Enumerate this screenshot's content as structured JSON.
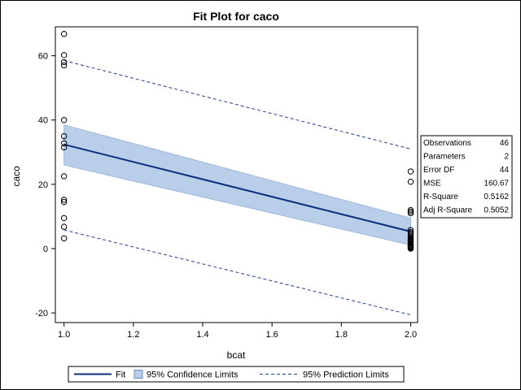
{
  "chart_data": {
    "type": "scatter",
    "title": "Fit Plot for caco",
    "xlabel": "bcat",
    "ylabel": "caco",
    "xlim": [
      0.975,
      2.02
    ],
    "ylim": [
      -23,
      69
    ],
    "x_ticks": [
      "1.0",
      "1.2",
      "1.4",
      "1.6",
      "1.8",
      "2.0"
    ],
    "y_ticks": [
      "-20",
      "0",
      "20",
      "40",
      "60"
    ],
    "points": [
      {
        "x": 1,
        "y": 66.8
      },
      {
        "x": 1,
        "y": 60.2
      },
      {
        "x": 1,
        "y": 58.0
      },
      {
        "x": 1,
        "y": 57.0
      },
      {
        "x": 1,
        "y": 40.0
      },
      {
        "x": 1,
        "y": 35.0
      },
      {
        "x": 1,
        "y": 32.8
      },
      {
        "x": 1,
        "y": 31.5
      },
      {
        "x": 1,
        "y": 22.5
      },
      {
        "x": 1,
        "y": 15.2
      },
      {
        "x": 1,
        "y": 14.5
      },
      {
        "x": 1,
        "y": 9.5
      },
      {
        "x": 1,
        "y": 6.8
      },
      {
        "x": 1,
        "y": 3.2
      },
      {
        "x": 2,
        "y": 24.0
      },
      {
        "x": 2,
        "y": 20.8
      },
      {
        "x": 2,
        "y": 12.0
      },
      {
        "x": 2,
        "y": 11.5
      },
      {
        "x": 2,
        "y": 11.0
      },
      {
        "x": 2,
        "y": 5.8
      },
      {
        "x": 2,
        "y": 5.2
      },
      {
        "x": 2,
        "y": 4.8
      },
      {
        "x": 2,
        "y": 4.3
      },
      {
        "x": 2,
        "y": 3.8
      },
      {
        "x": 2,
        "y": 3.3
      },
      {
        "x": 2,
        "y": 3.0
      },
      {
        "x": 2,
        "y": 2.7
      },
      {
        "x": 2,
        "y": 2.4
      },
      {
        "x": 2,
        "y": 2.1
      },
      {
        "x": 2,
        "y": 1.8
      },
      {
        "x": 2,
        "y": 1.5
      },
      {
        "x": 2,
        "y": 1.2
      },
      {
        "x": 2,
        "y": 1.0
      },
      {
        "x": 2,
        "y": 0.8
      },
      {
        "x": 2,
        "y": 0.6
      },
      {
        "x": 2,
        "y": 0.4
      },
      {
        "x": 2,
        "y": 0.2
      },
      {
        "x": 2,
        "y": 0.0
      }
    ],
    "fit": {
      "x": [
        1.0,
        2.0
      ],
      "y": [
        32.4,
        5.3
      ]
    },
    "confidence_band": {
      "x": [
        1.0,
        2.0
      ],
      "upper": [
        38.5,
        9.5
      ],
      "lower": [
        26.0,
        1.1
      ]
    },
    "prediction_limits": {
      "x": [
        1.0,
        2.0
      ],
      "upper": [
        58.5,
        31.0
      ],
      "lower": [
        5.8,
        -20.6
      ]
    },
    "colors": {
      "fit": "#0c2f7d",
      "band": "#b9cfe9",
      "band_edge": "#9fb8dc",
      "prediction": "#1f3f8f"
    },
    "stats": [
      {
        "label": "Observations",
        "value": "46"
      },
      {
        "label": "Parameters",
        "value": "2"
      },
      {
        "label": "Error DF",
        "value": "44"
      },
      {
        "label": "MSE",
        "value": "160.67"
      },
      {
        "label": "R-Square",
        "value": "0.5162"
      },
      {
        "label": "Adj R-Square",
        "value": "0.5052"
      }
    ],
    "legend": {
      "position": "bottom",
      "entries": [
        "Fit",
        "95% Confidence Limits",
        "95% Prediction Limits"
      ]
    },
    "grid": false
  }
}
